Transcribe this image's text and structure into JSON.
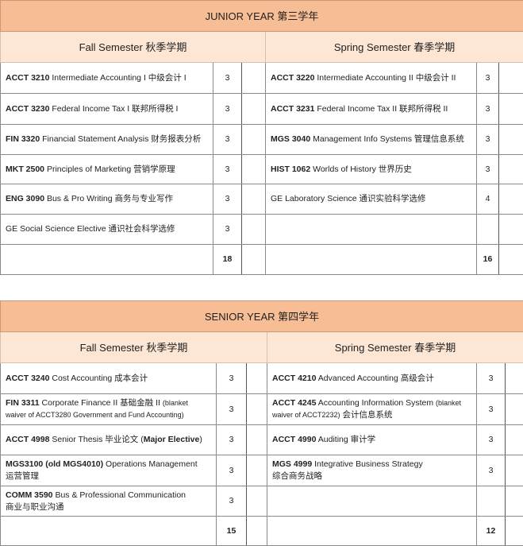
{
  "colors": {
    "year_header": "#f7bd94",
    "semester_header": "#fde6d4"
  },
  "years": [
    {
      "title": "JUNIOR YEAR 第三学年",
      "fall_label": "Fall Semester 秋季学期",
      "spring_label": "Spring Semester 春季学期",
      "rows": [
        {
          "fall": [
            {
              "b": "ACCT 3210"
            },
            {
              "t": " Intermediate Accounting I 中级会计 I"
            }
          ],
          "fall_cr": "3",
          "spring": [
            {
              "b": "ACCT 3220"
            },
            {
              "t": " Intermediate Accounting II 中级会计 II"
            }
          ],
          "spring_cr": "3"
        },
        {
          "fall": [
            {
              "b": "ACCT 3230"
            },
            {
              "t": " Federal Income Tax I 联邦所得税 I"
            }
          ],
          "fall_cr": "3",
          "spring": [
            {
              "b": "ACCT 3231"
            },
            {
              "t": " Federal Income Tax II 联邦所得税 II"
            }
          ],
          "spring_cr": "3"
        },
        {
          "fall": [
            {
              "b": "FIN 3320"
            },
            {
              "t": " Financial Statement Analysis 财务报表分析"
            }
          ],
          "fall_cr": "3",
          "spring": [
            {
              "b": "MGS 3040"
            },
            {
              "t": " Management Info Systems 管理信息系统"
            }
          ],
          "spring_cr": "3"
        },
        {
          "fall": [
            {
              "b": "MKT 2500"
            },
            {
              "t": " Principles of Marketing 营销学原理"
            }
          ],
          "fall_cr": "3",
          "spring": [
            {
              "b": "HIST 1062"
            },
            {
              "t": " Worlds of History 世界历史"
            }
          ],
          "spring_cr": "3"
        },
        {
          "fall": [
            {
              "b": "ENG 3090"
            },
            {
              "t": " Bus & Pro Writing 商务与专业写作"
            }
          ],
          "fall_cr": "3",
          "spring": [
            {
              "t": "GE Laboratory Science 通识实验科学选修"
            }
          ],
          "spring_cr": "4"
        },
        {
          "fall": [
            {
              "t": "GE Social Science Elective 通识社会科学选修"
            }
          ],
          "fall_cr": "3",
          "spring": [],
          "spring_cr": ""
        }
      ],
      "fall_total": "18",
      "spring_total": "16"
    },
    {
      "title": "SENIOR YEAR 第四学年",
      "fall_label": "Fall Semester 秋季学期",
      "spring_label": "Spring Semester 春季学期",
      "rows": [
        {
          "fall": [
            {
              "b": "ACCT 3240"
            },
            {
              "t": " Cost Accounting 成本会计"
            }
          ],
          "fall_cr": "3",
          "spring": [
            {
              "b": "ACCT 4210"
            },
            {
              "t": " Advanced Accounting 高级会计"
            }
          ],
          "spring_cr": "3"
        },
        {
          "fall": [
            {
              "b": "FIN 3311"
            },
            {
              "t": " Corporate Finance II 基础金融 II "
            },
            {
              "s": "(blanket\nwaiver of ACCT3280 Government and Fund Accounting)"
            }
          ],
          "fall_cr": "3",
          "spring": [
            {
              "b": "ACCT 4245"
            },
            {
              "t": " Accounting Information System "
            },
            {
              "s": "(blanket\nwaiver of ACCT2232)"
            },
            {
              "t": " 会计信息系统"
            }
          ],
          "spring_cr": "3"
        },
        {
          "fall": [
            {
              "b": "ACCT 4998"
            },
            {
              "t": " Senior Thesis 毕业论文 ("
            },
            {
              "b": "Major Elective"
            },
            {
              "t": ")"
            }
          ],
          "fall_cr": "3",
          "spring": [
            {
              "b": "ACCT 4990"
            },
            {
              "t": " Auditing 审计学"
            }
          ],
          "spring_cr": "3"
        },
        {
          "fall": [
            {
              "b": "MGS3100 (old MGS4010)"
            },
            {
              "t": " Operations Management\n运营管理"
            }
          ],
          "fall_cr": "3",
          "spring": [
            {
              "b": "MGS 4999"
            },
            {
              "t": " Integrative Business Strategy\n综合商务战略"
            }
          ],
          "spring_cr": "3"
        },
        {
          "fall": [
            {
              "b": "COMM 3590"
            },
            {
              "t": " Bus & Professional Communication\n商业与职业沟通"
            }
          ],
          "fall_cr": "3",
          "spring": [],
          "spring_cr": ""
        }
      ],
      "fall_total": "15",
      "spring_total": "12"
    }
  ]
}
